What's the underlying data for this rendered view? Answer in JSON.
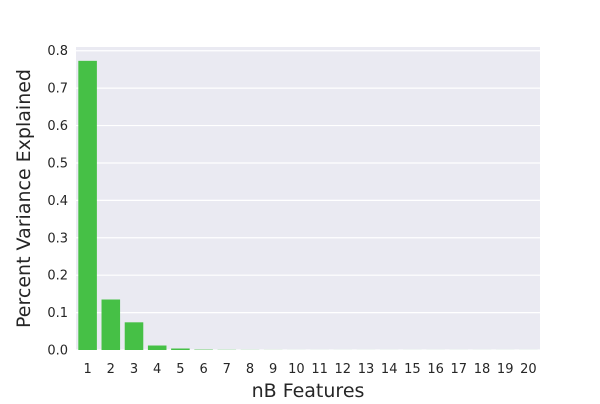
{
  "chart_data": {
    "type": "bar",
    "title": "",
    "xlabel": "nB Features",
    "ylabel": "Percent Variance Explained",
    "categories": [
      "1",
      "2",
      "3",
      "4",
      "5",
      "6",
      "7",
      "8",
      "9",
      "10",
      "11",
      "12",
      "13",
      "14",
      "15",
      "16",
      "17",
      "18",
      "19",
      "20"
    ],
    "values": [
      0.773,
      0.135,
      0.074,
      0.012,
      0.004,
      0.001,
      0.0005,
      0.0003,
      0.0002,
      0.0001,
      0.0001,
      0.0001,
      0.0001,
      0.0001,
      0.0001,
      0.0001,
      0.0001,
      0.0001,
      0.0001,
      0.0001
    ],
    "ylim": [
      0,
      0.81
    ],
    "yticks": [
      0.0,
      0.1,
      0.2,
      0.3,
      0.4,
      0.5,
      0.6,
      0.7,
      0.8
    ],
    "ytick_labels": [
      "0.0",
      "0.1",
      "0.2",
      "0.3",
      "0.4",
      "0.5",
      "0.6",
      "0.7",
      "0.8"
    ],
    "grid": true,
    "colors": {
      "bar": "#46c046",
      "background": "#eaeaf2",
      "grid": "#ffffff",
      "text": "#262626"
    }
  }
}
